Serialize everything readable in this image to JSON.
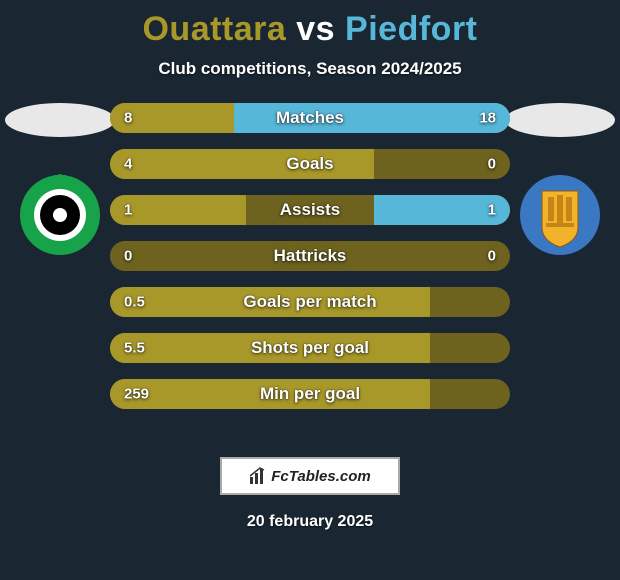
{
  "title": {
    "player1": "Ouattara",
    "vs": "vs",
    "player2": "Piedfort",
    "color1": "#a89829",
    "color_vs": "#ffffff",
    "color2": "#56b7d8"
  },
  "subtitle": "Club competitions, Season 2024/2025",
  "colors": {
    "background": "#1a2733",
    "bar_left": "#a89829",
    "bar_right": "#56b7d8",
    "bar_bg": "#a89829",
    "avatar_oval": "#e8e8e8"
  },
  "club_left": {
    "ring": "#17a349",
    "inner": "#000000",
    "accent": "#ffffff"
  },
  "club_right": {
    "bg": "#3b78c4",
    "accent": "#f2b22a"
  },
  "stats": [
    {
      "label": "Matches",
      "left_val": "8",
      "right_val": "18",
      "left_pct": 31,
      "right_pct": 69
    },
    {
      "label": "Goals",
      "left_val": "4",
      "right_val": "0",
      "left_pct": 66,
      "right_pct": 0
    },
    {
      "label": "Assists",
      "left_val": "1",
      "right_val": "1",
      "left_pct": 34,
      "right_pct": 34
    },
    {
      "label": "Hattricks",
      "left_val": "0",
      "right_val": "0",
      "left_pct": 0,
      "right_pct": 0
    },
    {
      "label": "Goals per match",
      "left_val": "0.5",
      "right_val": "",
      "left_pct": 80,
      "right_pct": 0
    },
    {
      "label": "Shots per goal",
      "left_val": "5.5",
      "right_val": "",
      "left_pct": 80,
      "right_pct": 0
    },
    {
      "label": "Min per goal",
      "left_val": "259",
      "right_val": "",
      "left_pct": 80,
      "right_pct": 0
    }
  ],
  "footer": {
    "brand": "FcTables.com",
    "date": "20 february 2025"
  }
}
